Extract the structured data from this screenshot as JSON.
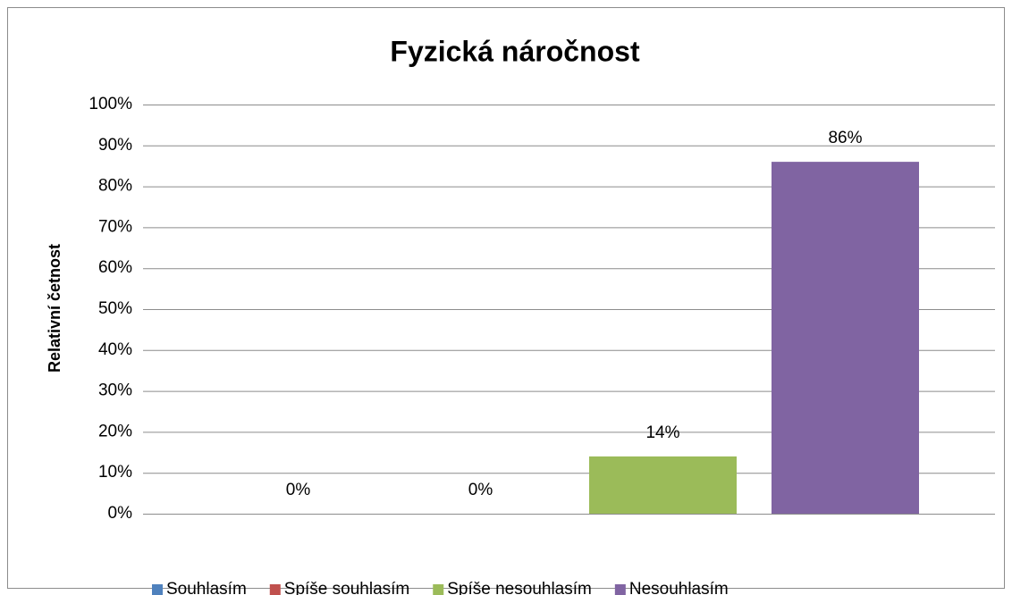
{
  "chart_data": {
    "type": "bar",
    "title": "Fyzická náročnost",
    "y_label": "Relativní četnost",
    "series": [
      {
        "name": "Souhlasím",
        "color": "#4f81bd",
        "values": [
          0
        ],
        "value_labels": [
          "0%"
        ]
      },
      {
        "name": "Spíše souhlasím",
        "color": "#c0504d",
        "values": [
          0
        ],
        "value_labels": [
          "0%"
        ]
      },
      {
        "name": "Spíše nesouhlasím",
        "color": "#9bbb59",
        "values": [
          14
        ],
        "value_labels": [
          "14%"
        ]
      },
      {
        "name": "Nesouhlasím",
        "color": "#8064a2",
        "values": [
          86
        ],
        "value_labels": [
          "86%"
        ]
      }
    ],
    "ylim": [
      0,
      100
    ],
    "yticks": [
      {
        "value": 0,
        "label": "0%"
      },
      {
        "value": 10,
        "label": "10%"
      },
      {
        "value": 20,
        "label": "20%"
      },
      {
        "value": 30,
        "label": "30%"
      },
      {
        "value": 40,
        "label": "40%"
      },
      {
        "value": 50,
        "label": "50%"
      },
      {
        "value": 60,
        "label": "60%"
      },
      {
        "value": 70,
        "label": "70%"
      },
      {
        "value": 80,
        "label": "80%"
      },
      {
        "value": 90,
        "label": "90%"
      },
      {
        "value": 100,
        "label": "100%"
      }
    ],
    "grid": true,
    "legend": "bottom"
  }
}
